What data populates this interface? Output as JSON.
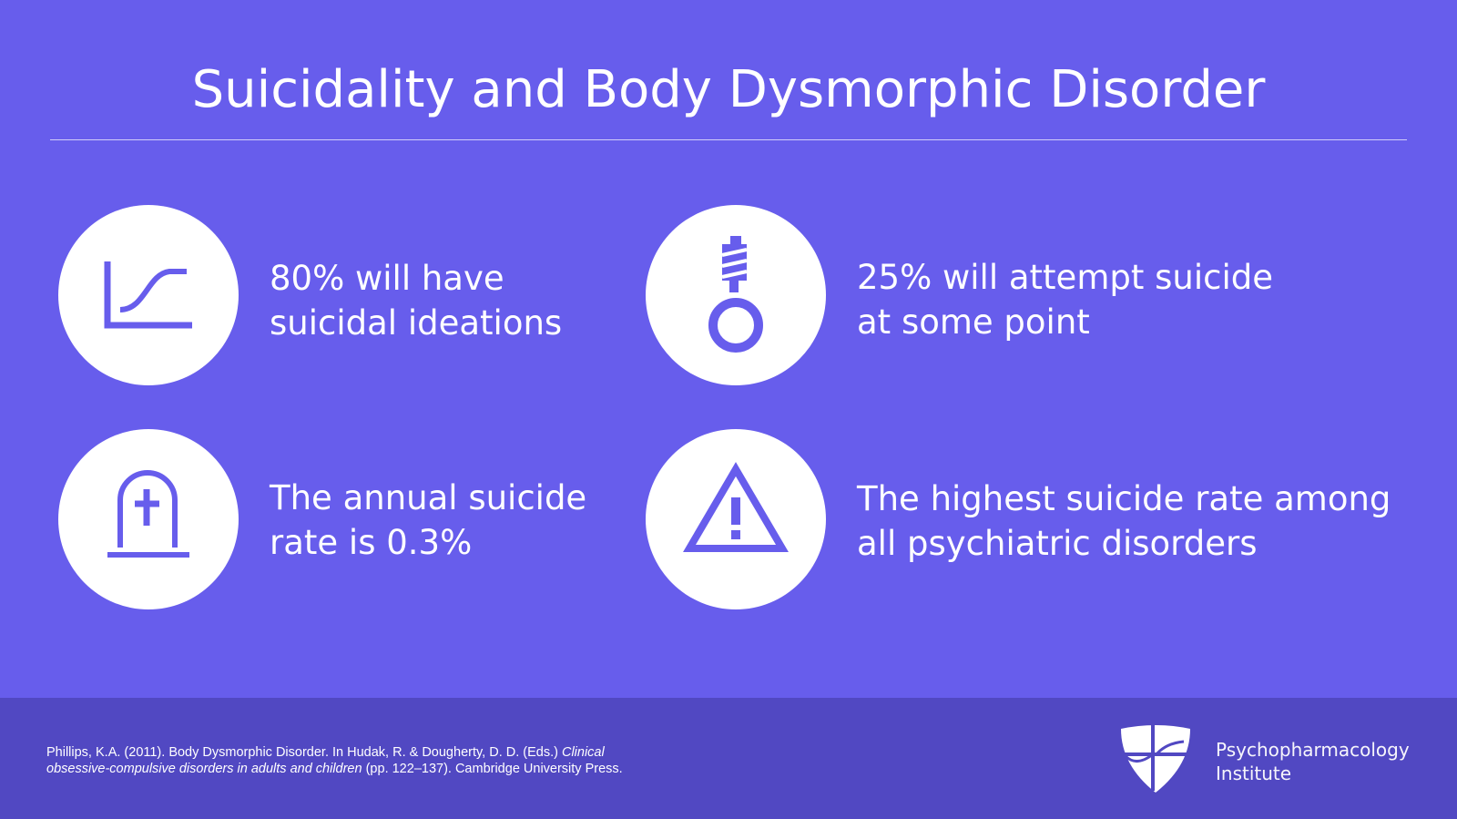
{
  "slide": {
    "title": "Suicidality and Body Dysmorphic Disorder",
    "accent_color": "#675DEC",
    "footer_color": "#5148C2"
  },
  "stats": [
    {
      "icon": "growth-curve-chart-icon",
      "line1": "80% will have",
      "line2": "suicidal ideations"
    },
    {
      "icon": "noose-icon",
      "line1": "25% will attempt suicide",
      "line2": "at some point"
    },
    {
      "icon": "gravestone-icon",
      "line1": "The annual suicide",
      "line2": "rate is 0.3%"
    },
    {
      "icon": "warning-triangle-icon",
      "line1": "The highest suicide rate among",
      "line2": "all psychiatric disorders"
    }
  ],
  "footer": {
    "citation_part1": "Phillips, K.A. (2011). Body Dysmorphic Disorder. In Hudak, R. & Dougherty, D. D. (Eds.) ",
    "citation_title_a": "Clinical",
    "citation_title_b": "obsessive-compulsive disorders in adults and children",
    "citation_part2": " (pp. 122–137). Cambridge University Press.",
    "logo_line1": "Psychopharmacology",
    "logo_line2": "Institute"
  }
}
